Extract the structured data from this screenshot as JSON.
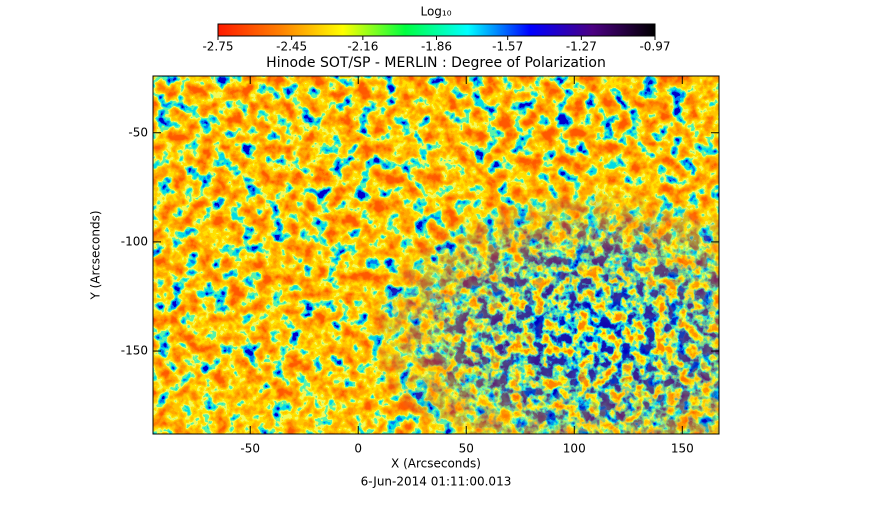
{
  "chart_data": {
    "type": "image",
    "title": "Hinode SOT/SP - MERLIN : Degree of Polarization",
    "subtitle": "6-Jun-2014 01:11:00.013",
    "x_label": "X (Arcseconds)",
    "y_label": "Y (Arcseconds)",
    "xlim": [
      -95,
      167
    ],
    "ylim": [
      -188,
      -24
    ],
    "xticks": [
      -50,
      0,
      50,
      100,
      150
    ],
    "yticks": [
      -50,
      -100,
      -150
    ],
    "colorbar": {
      "label": "Log₁₀",
      "zlim": [
        -2.75,
        -0.97
      ],
      "ticks": [
        -2.75,
        -2.45,
        -2.16,
        -1.86,
        -1.57,
        -1.27,
        -0.97
      ],
      "colormap": [
        "#ff1a00",
        "#ff8000",
        "#ffff00",
        "#00ff40",
        "#00ffff",
        "#0000ff",
        "#4b0082",
        "#000000"
      ]
    }
  }
}
